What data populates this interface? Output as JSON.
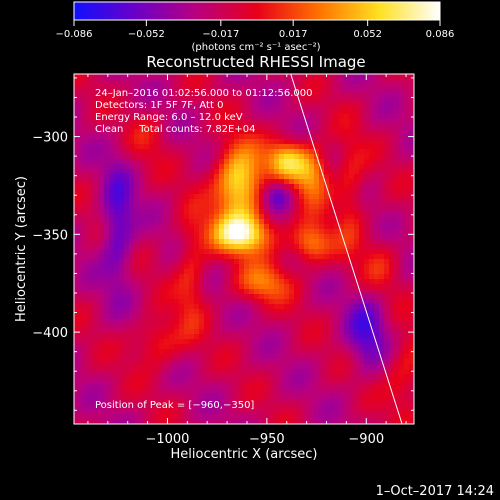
{
  "chart_data": {
    "type": "heatmap",
    "title": "Reconstructed RHESSI Image",
    "xlabel": "Heliocentric X (arcsec)",
    "ylabel": "Heliocentric Y (arcsec)",
    "xlim": [
      -1047,
      -876
    ],
    "ylim": [
      -447,
      -268
    ],
    "x_ticks": [
      {
        "value": -1000,
        "label": "−1000"
      },
      {
        "value": -950,
        "label": "−950"
      },
      {
        "value": -900,
        "label": "−900"
      }
    ],
    "y_ticks": [
      {
        "value": -300,
        "label": "−300"
      },
      {
        "value": -350,
        "label": "−350"
      },
      {
        "value": -400,
        "label": "−400"
      }
    ],
    "colorbar": {
      "range": [
        -0.086,
        0.086
      ],
      "colors": [
        "#1010ff",
        "#6a00c8",
        "#b80080",
        "#e8001a",
        "#ff7000",
        "#ffe020",
        "#ffffff"
      ],
      "ticks": [
        {
          "value": -0.086,
          "label": "−0.086"
        },
        {
          "value": -0.052,
          "label": "−0.052"
        },
        {
          "value": -0.017,
          "label": "−0.017"
        },
        {
          "value": 0.017,
          "label": "0.017"
        },
        {
          "value": 0.052,
          "label": "0.052"
        },
        {
          "value": 0.086,
          "label": "0.086"
        }
      ],
      "unit_label": "(photons cm⁻² s⁻¹ asec⁻²)"
    },
    "annotations": [
      "24–Jan–2016 01:02:56.000 to 01:12:56.000",
      "Detectors: 1F 5F 7F, Att 0",
      "Energy Range: 6.0 – 12.0 keV",
      "Clean     Total counts: 7.82E+04"
    ],
    "peak_label": "Position of Peak = [−960,−350]",
    "peak": [
      -960,
      -350
    ],
    "limb_line": [
      [
        -938,
        -268
      ],
      [
        -882,
        -447
      ]
    ],
    "timestamp": "1–Oct–2017 14:24"
  }
}
